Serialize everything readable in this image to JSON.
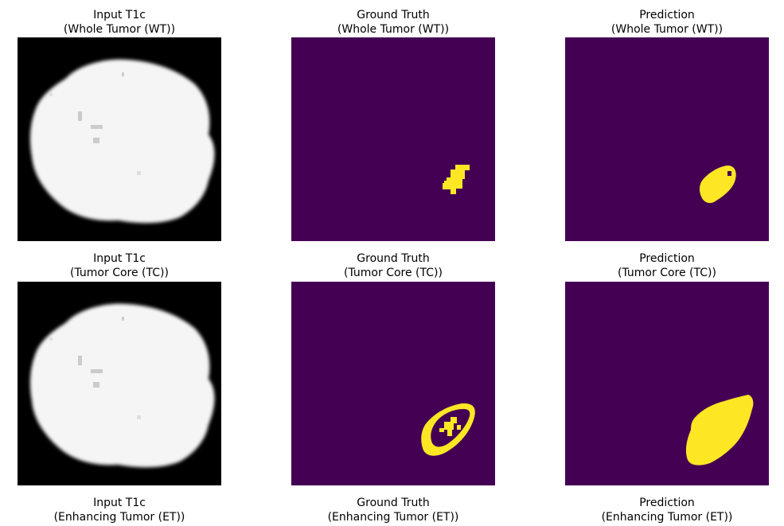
{
  "figure": {
    "colors": {
      "mri_background": "#000000",
      "mri_brain": "#f5f5f5",
      "mask_background": "#440154",
      "mask_tumor": "#fde725"
    },
    "rows": [
      {
        "input": {
          "title": "Input T1c",
          "subtitle": "(Whole Tumor (WT))"
        },
        "ground_truth": {
          "title": "Ground Truth",
          "subtitle": "(Whole Tumor (WT))"
        },
        "prediction": {
          "title": "Prediction",
          "subtitle": "(Whole Tumor (WT))"
        }
      },
      {
        "input": {
          "title": "Input T1c",
          "subtitle": "(Tumor Core (TC))"
        },
        "ground_truth": {
          "title": "Ground Truth",
          "subtitle": "(Tumor Core (TC))"
        },
        "prediction": {
          "title": "Prediction",
          "subtitle": "(Tumor Core (TC))"
        }
      },
      {
        "input": {
          "title": "Input T1c",
          "subtitle": "(Enhancing Tumor (ET))"
        },
        "ground_truth": {
          "title": "Ground Truth",
          "subtitle": "(Enhancing Tumor (ET))"
        },
        "prediction": {
          "title": "Prediction",
          "subtitle": "(Enhancing Tumor (ET))"
        }
      }
    ]
  }
}
